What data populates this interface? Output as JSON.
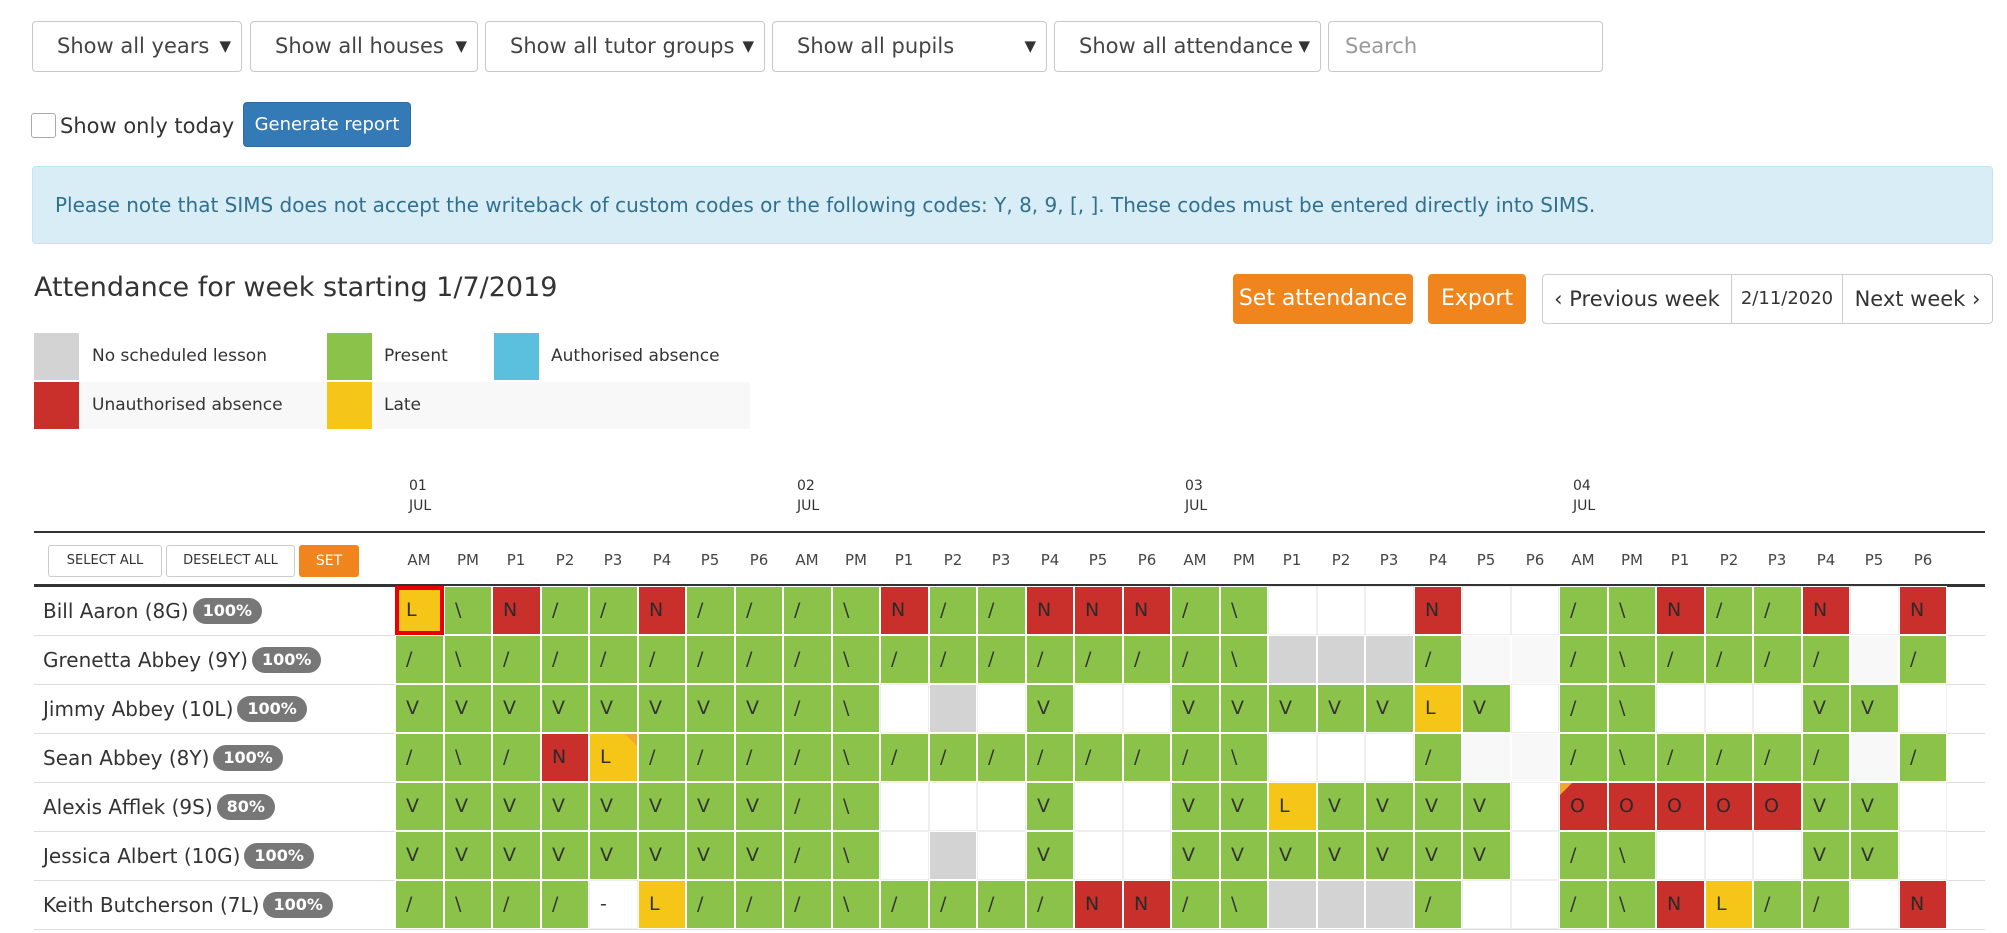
{
  "filters": {
    "years": "Show all years",
    "houses": "Show all houses",
    "tutor_groups": "Show all tutor groups",
    "pupils": "Show all pupils",
    "attendance": "Show all attendance",
    "search_placeholder": "Search"
  },
  "options": {
    "show_only_today": "Show only today",
    "show_only_today_checked": false,
    "generate_report": "Generate report"
  },
  "notice": "Please note that SIMS does not accept the writeback of custom codes or the following codes: Y, 8, 9, [, ]. These codes must be entered directly into SIMS.",
  "heading": "Attendance for week starting 1/7/2019",
  "actions": {
    "set_attendance": "Set attendance",
    "export": "Export",
    "previous_week": "Previous week",
    "date": "2/11/2020",
    "next_week": "Next week"
  },
  "legend": [
    {
      "label": "No scheduled lesson",
      "color": "#d3d3d3"
    },
    {
      "label": "Present",
      "color": "#8bc34a"
    },
    {
      "label": "Authorised absence",
      "color": "#5bc0de"
    },
    {
      "label": "Unauthorised absence",
      "color": "#c9302c"
    },
    {
      "label": "Late",
      "color": "#f5c518"
    }
  ],
  "grid": {
    "select_all": "SELECT ALL",
    "deselect_all": "DESELECT ALL",
    "set": "SET",
    "days": [
      {
        "day": "01",
        "month": "JUL"
      },
      {
        "day": "02",
        "month": "JUL"
      },
      {
        "day": "03",
        "month": "JUL"
      },
      {
        "day": "04",
        "month": "JUL"
      }
    ],
    "columns": [
      "AM",
      "PM",
      "P1",
      "P2",
      "P3",
      "P4",
      "P5",
      "P6"
    ],
    "pupils": [
      {
        "name": "Bill Aaron (8G)",
        "percent": "100%",
        "cells": [
          [
            "L",
            "late",
            "selected"
          ],
          [
            "\\",
            "present"
          ],
          [
            "N",
            "unauth"
          ],
          [
            "/",
            "present"
          ],
          [
            "/",
            "present"
          ],
          [
            "N",
            "unauth"
          ],
          [
            "/",
            "present"
          ],
          [
            "/",
            "present"
          ],
          [
            "/",
            "present"
          ],
          [
            "\\",
            "present"
          ],
          [
            "N",
            "unauth"
          ],
          [
            "/",
            "present"
          ],
          [
            "/",
            "present"
          ],
          [
            "N",
            "unauth"
          ],
          [
            "N",
            "unauth"
          ],
          [
            "N",
            "unauth"
          ],
          [
            "/",
            "present"
          ],
          [
            "\\",
            "present"
          ],
          [
            "",
            "white"
          ],
          [
            "",
            "white"
          ],
          [
            "",
            "white"
          ],
          [
            "N",
            "unauth"
          ],
          [
            "",
            "white"
          ],
          [
            "",
            "white"
          ],
          [
            "/",
            "present"
          ],
          [
            "\\",
            "present"
          ],
          [
            "N",
            "unauth"
          ],
          [
            "/",
            "present"
          ],
          [
            "/",
            "present"
          ],
          [
            "N",
            "unauth"
          ],
          [
            "",
            "white"
          ],
          [
            "N",
            "unauth"
          ]
        ]
      },
      {
        "name": "Grenetta Abbey (9Y)",
        "percent": "100%",
        "cells": [
          [
            "/",
            "present"
          ],
          [
            "\\",
            "present"
          ],
          [
            "/",
            "present"
          ],
          [
            "/",
            "present"
          ],
          [
            "/",
            "present"
          ],
          [
            "/",
            "present"
          ],
          [
            "/",
            "present"
          ],
          [
            "/",
            "present"
          ],
          [
            "/",
            "present"
          ],
          [
            "\\",
            "present"
          ],
          [
            "/",
            "present"
          ],
          [
            "/",
            "present"
          ],
          [
            "/",
            "present"
          ],
          [
            "/",
            "present"
          ],
          [
            "/",
            "present"
          ],
          [
            "/",
            "present"
          ],
          [
            "/",
            "present"
          ],
          [
            "\\",
            "present"
          ],
          [
            "",
            "none"
          ],
          [
            "",
            "none"
          ],
          [
            "",
            "none"
          ],
          [
            "/",
            "present"
          ],
          [
            "",
            "blank"
          ],
          [
            "",
            "blank"
          ],
          [
            "/",
            "present"
          ],
          [
            "\\",
            "present"
          ],
          [
            "/",
            "present"
          ],
          [
            "/",
            "present"
          ],
          [
            "/",
            "present"
          ],
          [
            "/",
            "present"
          ],
          [
            "",
            "blank"
          ],
          [
            "/",
            "present"
          ]
        ]
      },
      {
        "name": "Jimmy Abbey (10L)",
        "percent": "100%",
        "cells": [
          [
            "V",
            "present"
          ],
          [
            "V",
            "present"
          ],
          [
            "V",
            "present"
          ],
          [
            "V",
            "present"
          ],
          [
            "V",
            "present"
          ],
          [
            "V",
            "present"
          ],
          [
            "V",
            "present"
          ],
          [
            "V",
            "present"
          ],
          [
            "/",
            "present"
          ],
          [
            "\\",
            "present"
          ],
          [
            "",
            "white"
          ],
          [
            "",
            "none"
          ],
          [
            "",
            "white"
          ],
          [
            "V",
            "present"
          ],
          [
            "",
            "white"
          ],
          [
            "",
            "white"
          ],
          [
            "V",
            "present"
          ],
          [
            "V",
            "present"
          ],
          [
            "V",
            "present"
          ],
          [
            "V",
            "present"
          ],
          [
            "V",
            "present"
          ],
          [
            "L",
            "late"
          ],
          [
            "V",
            "present"
          ],
          [
            "",
            "white"
          ],
          [
            "/",
            "present"
          ],
          [
            "\\",
            "present"
          ],
          [
            "",
            "white"
          ],
          [
            "",
            "white"
          ],
          [
            "",
            "white"
          ],
          [
            "V",
            "present"
          ],
          [
            "V",
            "present"
          ],
          [
            "",
            "white"
          ]
        ]
      },
      {
        "name": "Sean Abbey (8Y)",
        "percent": "100%",
        "cells": [
          [
            "/",
            "present"
          ],
          [
            "\\",
            "present"
          ],
          [
            "/",
            "present"
          ],
          [
            "N",
            "unauth"
          ],
          [
            "L",
            "late",
            "corner"
          ],
          [
            "/",
            "present"
          ],
          [
            "/",
            "present"
          ],
          [
            "/",
            "present"
          ],
          [
            "/",
            "present"
          ],
          [
            "\\",
            "present"
          ],
          [
            "/",
            "present"
          ],
          [
            "/",
            "present"
          ],
          [
            "/",
            "present"
          ],
          [
            "/",
            "present"
          ],
          [
            "/",
            "present"
          ],
          [
            "/",
            "present"
          ],
          [
            "/",
            "present"
          ],
          [
            "\\",
            "present"
          ],
          [
            "",
            "white"
          ],
          [
            "",
            "white"
          ],
          [
            "",
            "white"
          ],
          [
            "/",
            "present"
          ],
          [
            "",
            "blank"
          ],
          [
            "",
            "blank"
          ],
          [
            "/",
            "present"
          ],
          [
            "\\",
            "present"
          ],
          [
            "/",
            "present"
          ],
          [
            "/",
            "present"
          ],
          [
            "/",
            "present"
          ],
          [
            "/",
            "present"
          ],
          [
            "",
            "blank"
          ],
          [
            "/",
            "present"
          ]
        ]
      },
      {
        "name": "Alexis Afflek (9S)",
        "percent": "80%",
        "cells": [
          [
            "V",
            "present"
          ],
          [
            "V",
            "present"
          ],
          [
            "V",
            "present"
          ],
          [
            "V",
            "present"
          ],
          [
            "V",
            "present"
          ],
          [
            "V",
            "present"
          ],
          [
            "V",
            "present"
          ],
          [
            "V",
            "present"
          ],
          [
            "/",
            "present"
          ],
          [
            "\\",
            "present"
          ],
          [
            "",
            "white"
          ],
          [
            "",
            "white"
          ],
          [
            "",
            "white"
          ],
          [
            "V",
            "present"
          ],
          [
            "",
            "white"
          ],
          [
            "",
            "white"
          ],
          [
            "V",
            "present"
          ],
          [
            "V",
            "present"
          ],
          [
            "L",
            "late"
          ],
          [
            "V",
            "present"
          ],
          [
            "V",
            "present"
          ],
          [
            "V",
            "present"
          ],
          [
            "V",
            "present"
          ],
          [
            "",
            "white"
          ],
          [
            "O",
            "unauth",
            "corner"
          ],
          [
            "O",
            "unauth"
          ],
          [
            "O",
            "unauth"
          ],
          [
            "O",
            "unauth"
          ],
          [
            "O",
            "unauth"
          ],
          [
            "V",
            "present"
          ],
          [
            "V",
            "present"
          ],
          [
            "",
            "white"
          ]
        ]
      },
      {
        "name": "Jessica Albert (10G)",
        "percent": "100%",
        "cells": [
          [
            "V",
            "present"
          ],
          [
            "V",
            "present"
          ],
          [
            "V",
            "present"
          ],
          [
            "V",
            "present"
          ],
          [
            "V",
            "present"
          ],
          [
            "V",
            "present"
          ],
          [
            "V",
            "present"
          ],
          [
            "V",
            "present"
          ],
          [
            "/",
            "present"
          ],
          [
            "\\",
            "present"
          ],
          [
            "",
            "white"
          ],
          [
            "",
            "none"
          ],
          [
            "",
            "white"
          ],
          [
            "V",
            "present"
          ],
          [
            "",
            "white"
          ],
          [
            "",
            "white"
          ],
          [
            "V",
            "present"
          ],
          [
            "V",
            "present"
          ],
          [
            "V",
            "present"
          ],
          [
            "V",
            "present"
          ],
          [
            "V",
            "present"
          ],
          [
            "V",
            "present"
          ],
          [
            "V",
            "present"
          ],
          [
            "",
            "white"
          ],
          [
            "/",
            "present"
          ],
          [
            "\\",
            "present"
          ],
          [
            "",
            "white"
          ],
          [
            "",
            "white"
          ],
          [
            "",
            "white"
          ],
          [
            "V",
            "present"
          ],
          [
            "V",
            "present"
          ],
          [
            "",
            "white"
          ]
        ]
      },
      {
        "name": "Keith Butcherson (7L)",
        "percent": "100%",
        "cells": [
          [
            "/",
            "present"
          ],
          [
            "\\",
            "present"
          ],
          [
            "/",
            "present"
          ],
          [
            "/",
            "present"
          ],
          [
            "-",
            "white"
          ],
          [
            "L",
            "late"
          ],
          [
            "/",
            "present"
          ],
          [
            "/",
            "present"
          ],
          [
            "/",
            "present"
          ],
          [
            "\\",
            "present"
          ],
          [
            "/",
            "present"
          ],
          [
            "/",
            "present"
          ],
          [
            "/",
            "present"
          ],
          [
            "/",
            "present"
          ],
          [
            "N",
            "unauth"
          ],
          [
            "N",
            "unauth"
          ],
          [
            "/",
            "present"
          ],
          [
            "\\",
            "present"
          ],
          [
            "",
            "none"
          ],
          [
            "",
            "none"
          ],
          [
            "",
            "none"
          ],
          [
            "/",
            "present"
          ],
          [
            "",
            "white"
          ],
          [
            "",
            "white"
          ],
          [
            "/",
            "present"
          ],
          [
            "\\",
            "present"
          ],
          [
            "N",
            "unauth"
          ],
          [
            "L",
            "late"
          ],
          [
            "/",
            "present"
          ],
          [
            "/",
            "present"
          ],
          [
            "",
            "white"
          ],
          [
            "N",
            "unauth"
          ]
        ]
      }
    ]
  }
}
